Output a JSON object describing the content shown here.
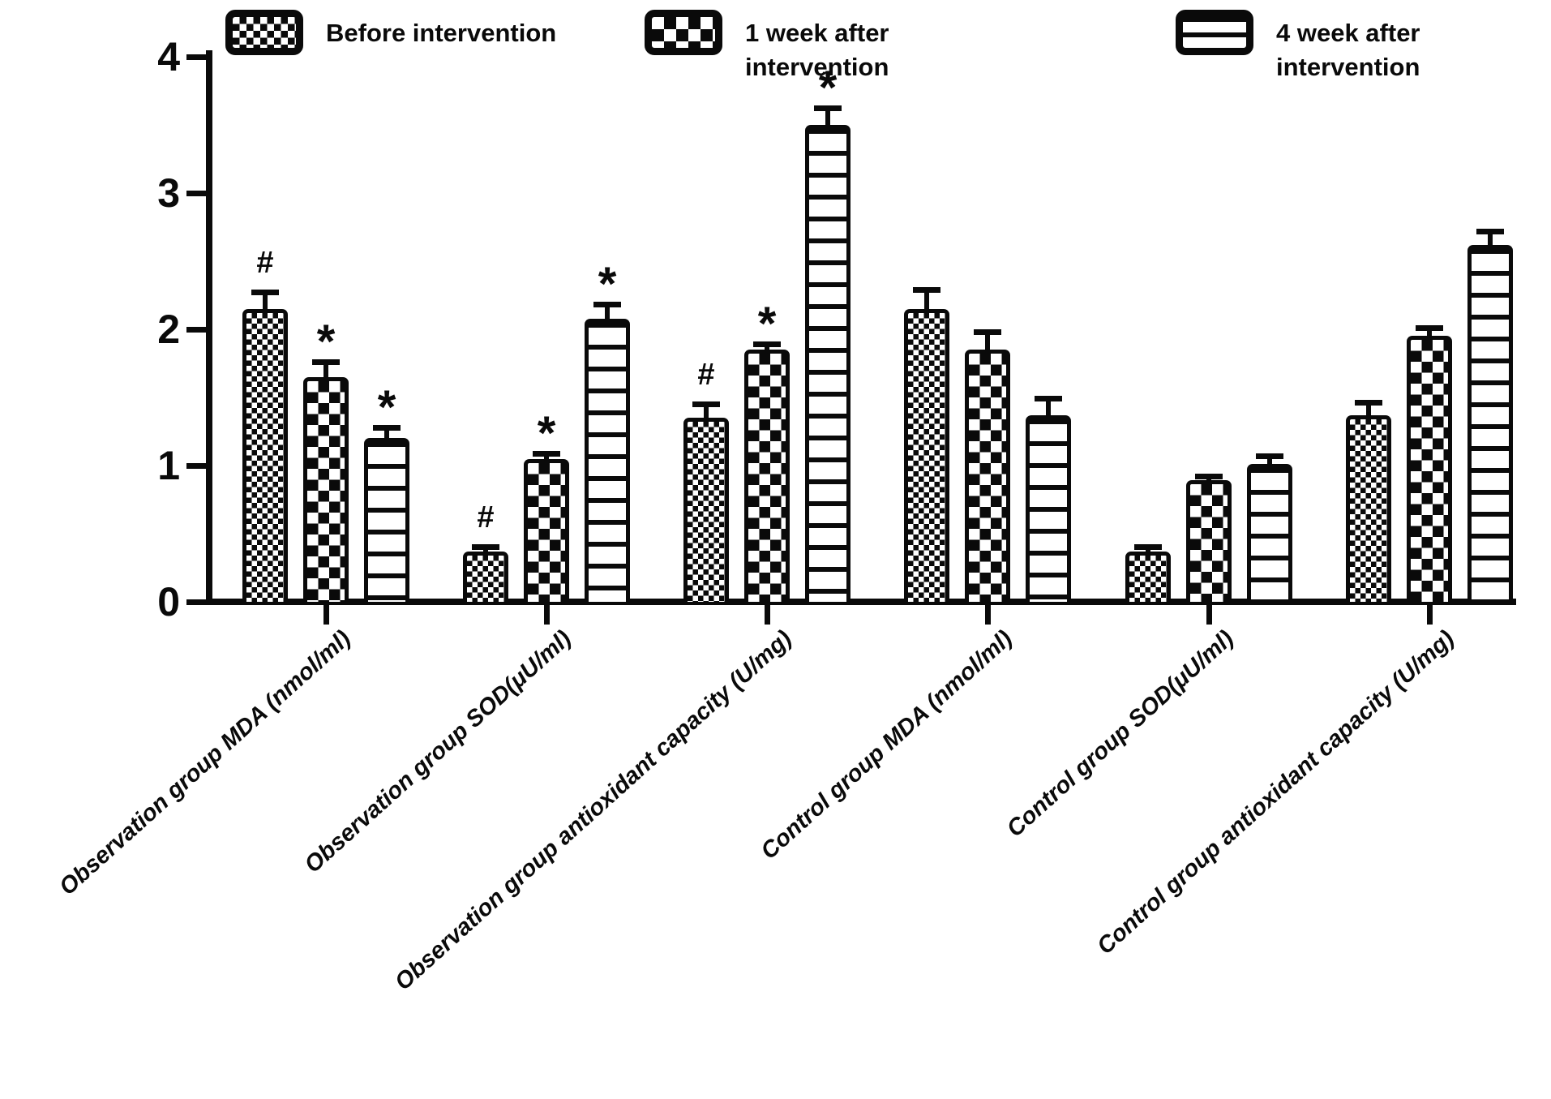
{
  "figure": {
    "background": "#ffffff",
    "ink": "#0a0a0a"
  },
  "legend": {
    "position": "top",
    "items": [
      {
        "label": "Before intervention",
        "pattern": "fine-checkerboard"
      },
      {
        "label": "1 week after\nintervention",
        "pattern": "coarse-checkerboard"
      },
      {
        "label": "4 week after\nintervention",
        "pattern": "horizontal-lines"
      }
    ]
  },
  "chart_data": {
    "type": "bar",
    "title": "",
    "xlabel": "",
    "ylabel": "",
    "ylim": [
      0,
      4
    ],
    "yticks": [
      0,
      1,
      2,
      3,
      4
    ],
    "grid": false,
    "legend_position": "top",
    "error_bars": "upper whisker with cap",
    "categories": [
      "Observation group MDA (nmol/ml)",
      "Observation group SOD(μU/ml)",
      "Observation group antioxidant capacity (U/mg)",
      "Control group MDA (nmol/ml)",
      "Control group SOD(μU/ml)",
      "Control group antioxidant capacity (U/mg)"
    ],
    "series": [
      {
        "name": "Before intervention",
        "pattern": "fine-checkerboard",
        "values": [
          2.15,
          0.37,
          1.35,
          2.15,
          0.37,
          1.37
        ],
        "errors": [
          0.14,
          0.05,
          0.12,
          0.16,
          0.05,
          0.11
        ],
        "annotations": [
          "#",
          "#",
          "#",
          "",
          "",
          ""
        ]
      },
      {
        "name": "1 week after intervention",
        "pattern": "coarse-checkerboard",
        "values": [
          1.65,
          1.05,
          1.85,
          1.85,
          0.89,
          1.95
        ],
        "errors": [
          0.13,
          0.06,
          0.06,
          0.15,
          0.05,
          0.08
        ],
        "annotations": [
          "*",
          "*",
          "*",
          "",
          "",
          ""
        ]
      },
      {
        "name": "4 week after intervention",
        "pattern": "horizontal-lines",
        "values": [
          1.2,
          2.08,
          3.5,
          1.37,
          1.01,
          2.62
        ],
        "errors": [
          0.1,
          0.12,
          0.14,
          0.14,
          0.08,
          0.12
        ],
        "annotations": [
          "*",
          "*",
          "*",
          "",
          "",
          ""
        ]
      }
    ]
  }
}
